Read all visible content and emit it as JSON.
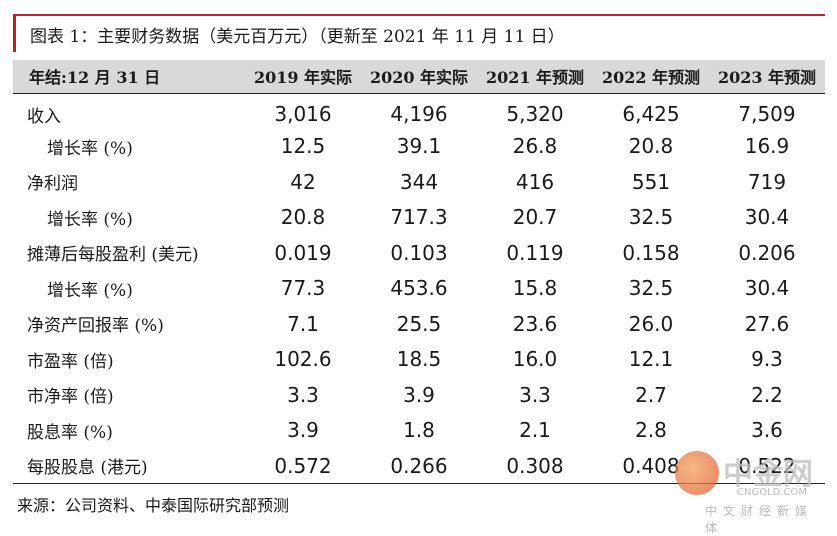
{
  "title": "图表 1：主要财务数据（美元百万元）（更新至 2021 年 11 月 11 日）",
  "table": {
    "headers": [
      "年结:12 月 31 日",
      "2019 年实际",
      "2020 年实际",
      "2021 年预测",
      "2022 年预测",
      "2023 年预测"
    ],
    "rows": [
      {
        "label": "收入",
        "sub": false,
        "values": [
          "3,016",
          "4,196",
          "5,320",
          "6,425",
          "7,509"
        ]
      },
      {
        "label": "增长率 (%)",
        "sub": true,
        "values": [
          "12.5",
          "39.1",
          "26.8",
          "20.8",
          "16.9"
        ]
      },
      {
        "label": "净利润",
        "sub": false,
        "values": [
          "42",
          "344",
          "416",
          "551",
          "719"
        ]
      },
      {
        "label": "增长率 (%)",
        "sub": true,
        "values": [
          "20.8",
          "717.3",
          "20.7",
          "32.5",
          "30.4"
        ]
      },
      {
        "label": "摊薄后每股盈利 (美元)",
        "sub": false,
        "values": [
          "0.019",
          "0.103",
          "0.119",
          "0.158",
          "0.206"
        ]
      },
      {
        "label": "增长率 (%)",
        "sub": true,
        "values": [
          "77.3",
          "453.6",
          "15.8",
          "32.5",
          "30.4"
        ]
      },
      {
        "label": "净资产回报率 (%)",
        "sub": false,
        "values": [
          "7.1",
          "25.5",
          "23.6",
          "26.0",
          "27.6"
        ]
      },
      {
        "label": "市盈率 (倍)",
        "sub": false,
        "values": [
          "102.6",
          "18.5",
          "16.0",
          "12.1",
          "9.3"
        ]
      },
      {
        "label": "市净率 (倍)",
        "sub": false,
        "values": [
          "3.3",
          "3.9",
          "3.3",
          "2.7",
          "2.2"
        ]
      },
      {
        "label": "股息率 (%)",
        "sub": false,
        "values": [
          "3.9",
          "1.8",
          "2.1",
          "2.8",
          "3.6"
        ]
      },
      {
        "label": "每股股息 (港元)",
        "sub": false,
        "values": [
          "0.572",
          "0.266",
          "0.308",
          "0.408",
          "0.522"
        ]
      }
    ]
  },
  "source": "来源：公司资料、中泰国际研究部预测",
  "watermark": {
    "name": "中金网",
    "url": "CNGOLD.COM",
    "tagline": "中文财经新媒体"
  },
  "colors": {
    "accent": "#b3262b",
    "header_bg": "#d9d9d9"
  }
}
